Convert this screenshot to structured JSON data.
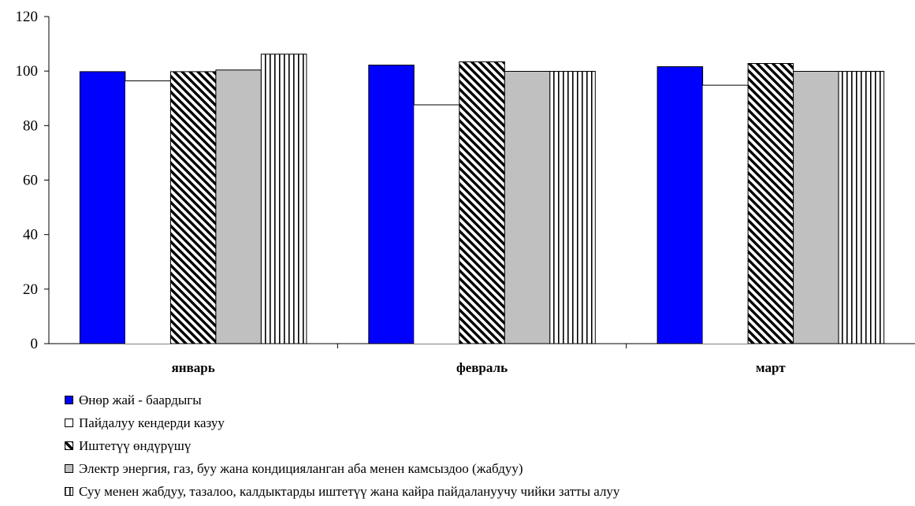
{
  "chart_data": {
    "type": "bar",
    "title": "",
    "xlabel": "",
    "ylabel": "",
    "categories": [
      "январь",
      "февраль",
      "март"
    ],
    "ylim": [
      0,
      120
    ],
    "yticks": [
      "0",
      "20",
      "40",
      "60",
      "80",
      "100",
      "120"
    ],
    "grid": false,
    "legend_position": "bottom",
    "series": [
      {
        "name": "Өнөр жай - баардыгы",
        "values": [
          99.8,
          102.2,
          101.6
        ],
        "color": "#0000ff",
        "pattern": "solid"
      },
      {
        "name": "Пайдалуу кендерди казуу",
        "values": [
          96.4,
          87.6,
          94.8
        ],
        "color": "#ffffff",
        "pattern": "empty"
      },
      {
        "name": "Иштетүү өндүрүшү",
        "values": [
          99.8,
          103.4,
          102.8
        ],
        "color": "#000000",
        "pattern": "diagonal"
      },
      {
        "name": "Электр энергия, газ, буу жана кондицияланган аба менен камсыздоо (жабдуу)",
        "values": [
          100.4,
          99.9,
          99.9
        ],
        "color": "#c0c0c0",
        "pattern": "solid"
      },
      {
        "name": "Суу менен жабдуу, тазалоо, калдыктарды иштетүү жана кайра пайдалануучу чийки затты алуу",
        "values": [
          106.2,
          99.9,
          99.9
        ],
        "color": "#000000",
        "pattern": "vertical"
      }
    ]
  }
}
